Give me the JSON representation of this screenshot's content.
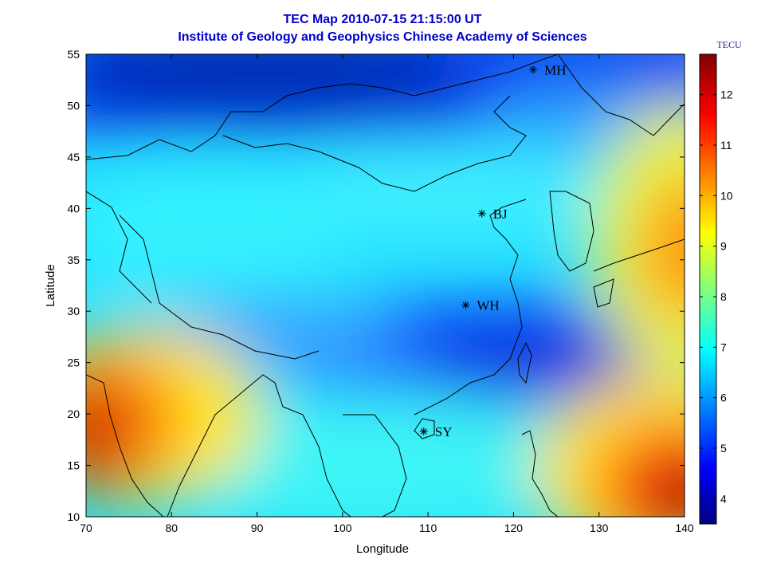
{
  "title_line1": "TEC Map 2010-07-15 21:15:00 UT",
  "title_line2": "Institute of Geology and Geophysics Chinese Academy of Sciences",
  "colorbar_unit": "TECU",
  "colors": {
    "title": "#0000cc",
    "colormap": [
      "#000080",
      "#0000ff",
      "#00ffff",
      "#ffff00",
      "#ff0000",
      "#800000"
    ]
  },
  "chart_data": {
    "type": "heatmap",
    "xlabel": "Longitude",
    "ylabel": "Latitude",
    "xlim": [
      70,
      140
    ],
    "ylim": [
      10,
      55
    ],
    "xticks": [
      70,
      80,
      90,
      100,
      110,
      120,
      130,
      140
    ],
    "yticks": [
      10,
      15,
      20,
      25,
      30,
      35,
      40,
      45,
      50,
      55
    ],
    "colorbar": {
      "label": "TECU",
      "range": [
        3.5,
        12.8
      ],
      "ticks": [
        4,
        5,
        6,
        7,
        8,
        9,
        10,
        11,
        12
      ]
    },
    "tec_features": [
      {
        "desc": "low",
        "lon": 100,
        "lat": 53,
        "value": 3.8
      },
      {
        "desc": "low",
        "lon": 120,
        "lat": 26,
        "value": 4.5
      },
      {
        "desc": "high",
        "lon": 70,
        "lat": 20,
        "value": 12.2
      },
      {
        "desc": "high",
        "lon": 140,
        "lat": 11,
        "value": 12.8
      },
      {
        "desc": "high",
        "lon": 140,
        "lat": 36,
        "value": 10.8
      }
    ],
    "stations": [
      {
        "name": "MH",
        "lon": 122.3,
        "lat": 53.5
      },
      {
        "name": "BJ",
        "lon": 116.3,
        "lat": 39.5
      },
      {
        "name": "WH",
        "lon": 114.4,
        "lat": 30.6
      },
      {
        "name": "SY",
        "lon": 109.5,
        "lat": 18.3
      }
    ]
  }
}
